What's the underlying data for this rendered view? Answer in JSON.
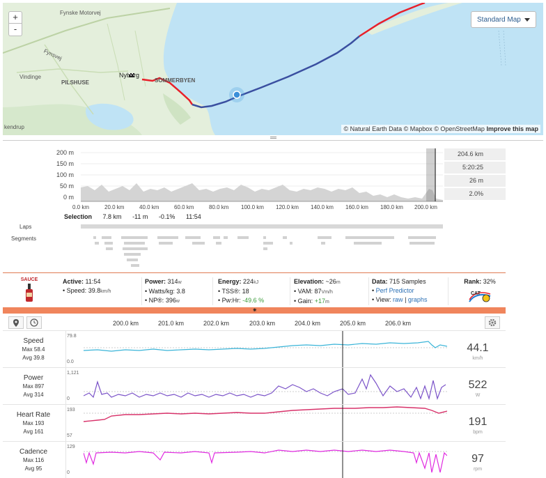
{
  "map": {
    "zoom_in": "+",
    "zoom_out": "-",
    "style_label": "Standard Map",
    "attribution": "© Natural Earth Data © Mapbox © OpenStreetMap",
    "improve_label": "Improve this map",
    "places": [
      "Fynske Motorvej",
      "Fynsvej",
      "Vindinge",
      "PILSHUSE",
      "Nyborg",
      "SOMMERBYEN",
      "kendrup"
    ]
  },
  "elevation": {
    "y_ticks": [
      "200 m",
      "150 m",
      "100 m",
      "50 m",
      "0 m"
    ],
    "x_ticks": [
      "0.0 km",
      "20.0 km",
      "40.0 km",
      "60.0 km",
      "80.0 km",
      "100.0 km",
      "120.0 km",
      "140.0 km",
      "160.0 km",
      "180.0 km",
      "200.0 km"
    ],
    "stats": [
      "204.6 km",
      "5:20:25",
      "26 m",
      "2.0%"
    ],
    "selection": {
      "label": "Selection",
      "distance": "7.8 km",
      "elev": "-11 m",
      "grade": "-0.1%",
      "time": "11:54"
    },
    "laps_label": "Laps",
    "segments_label": "Segments"
  },
  "summary": {
    "logo": "SAUCE",
    "active": {
      "label": "Active:",
      "value": "11:54",
      "speed_label": "Speed:",
      "speed": "39.8",
      "speed_unit": "km/h"
    },
    "power": {
      "label": "Power:",
      "value": "314",
      "unit": "w",
      "wkg_label": "Watts/kg:",
      "wkg": "3.8",
      "np_label": "NP®:",
      "np": "396",
      "np_unit": "w"
    },
    "energy": {
      "label": "Energy:",
      "value": "224",
      "unit": "kJ",
      "tss_label": "TSS®:",
      "tss": "18",
      "pwhr_label": "Pw:Hr:",
      "pwhr": "-49.6 %"
    },
    "elevation": {
      "label": "Elevation:",
      "value": "~26",
      "unit": "m",
      "vam_label": "VAM:",
      "vam": "87",
      "vam_unit": "Vm/h",
      "gain_label": "Gain:",
      "gain": "+17",
      "gain_unit": "m"
    },
    "data": {
      "label": "Data:",
      "value": "715 Samples",
      "perf": "Perf Predictor",
      "view_label": "View:",
      "raw": "raw",
      "sep": "|",
      "graphs": "graphs"
    },
    "rank": {
      "label": "Rank:",
      "value": "32%",
      "badge": "CAT"
    }
  },
  "streams": {
    "dist_ticks": [
      "200.0 km",
      "201.0 km",
      "202.0 km",
      "203.0 km",
      "204.0 km",
      "205.0 km",
      "206.0 km"
    ],
    "rows": [
      {
        "name": "Speed",
        "max": "Max 58.4",
        "avg": "Avg 39.8",
        "ymax": "79.8",
        "ymin": "0.0",
        "value": "44.1",
        "unit": "km/h",
        "color": "#39b4d8"
      },
      {
        "name": "Power",
        "max": "Max 897",
        "avg": "Avg 314",
        "ymax": "1,121",
        "ymin": "0",
        "value": "522",
        "unit": "W",
        "color": "#7a52c8"
      },
      {
        "name": "Heart Rate",
        "max": "Max 193",
        "avg": "Avg 161",
        "ymax": "193",
        "ymin": "57",
        "value": "191",
        "unit": "bpm",
        "color": "#d8326a"
      },
      {
        "name": "Cadence",
        "max": "Max 116",
        "avg": "Avg 95",
        "ymax": "129",
        "ymin": "0",
        "value": "97",
        "unit": "rpm",
        "color": "#e02ae0"
      }
    ]
  },
  "colors": {
    "accent": "#f0855c",
    "route_red": "#e8202a",
    "route_blue": "#3a4fa0",
    "map_water": "#bfe3f5",
    "map_land": "#e4efdc"
  }
}
